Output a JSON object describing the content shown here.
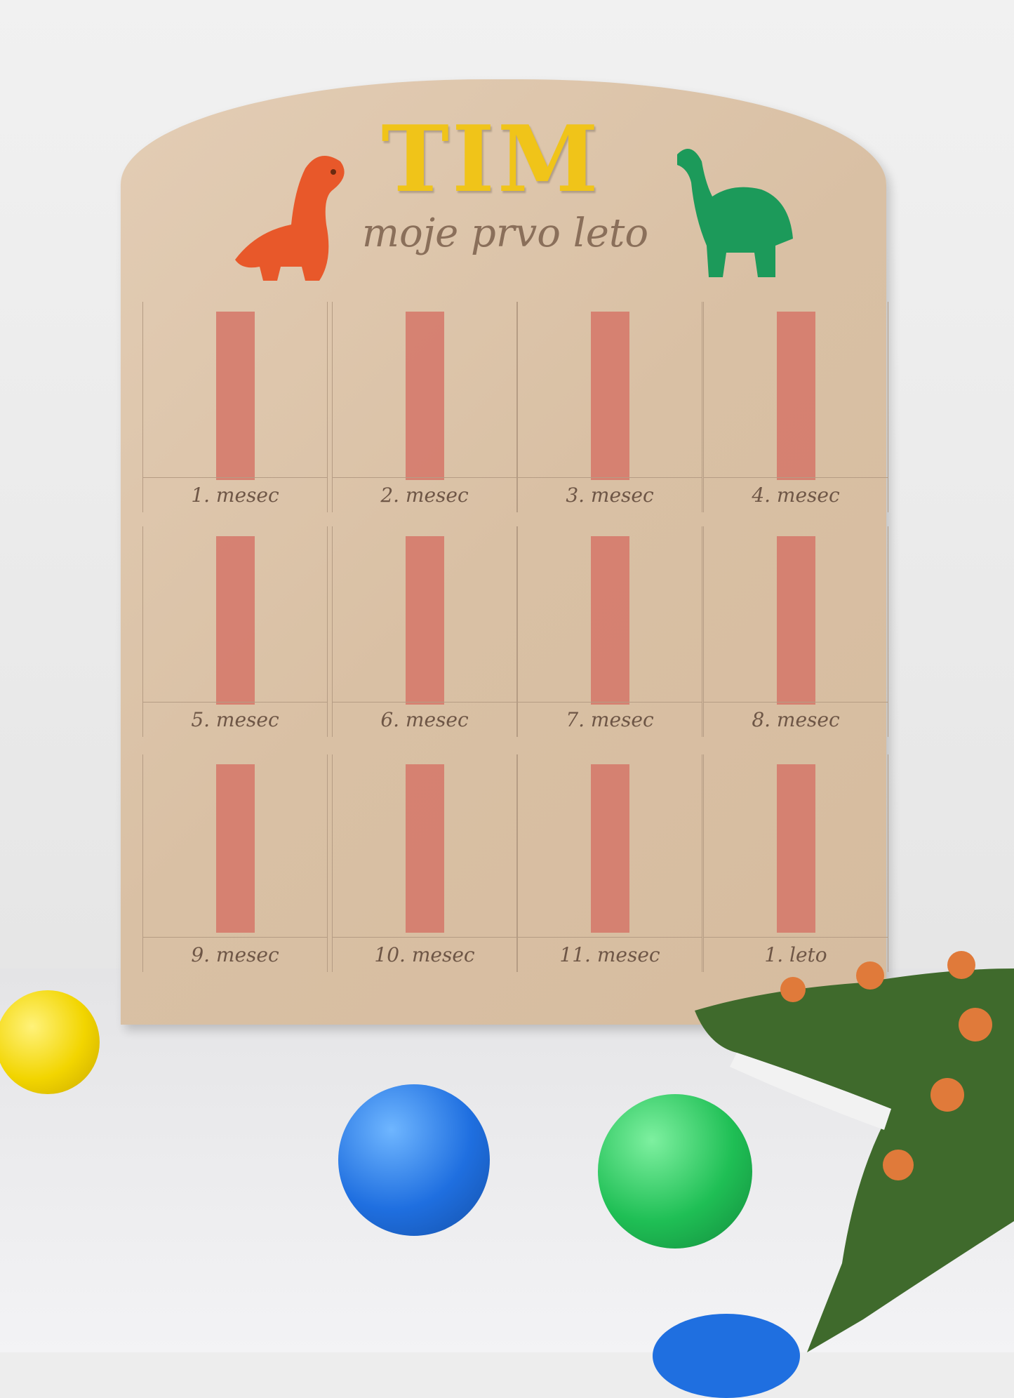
{
  "board": {
    "title": "TIM",
    "subtitle": "moje prvo leto",
    "cells": [
      "1. mesec",
      "2. mesec",
      "3. mesec",
      "4. mesec",
      "5. mesec",
      "6. mesec",
      "7. mesec",
      "8. mesec",
      "9. mesec",
      "10. mesec",
      "11. mesec",
      "1. leto"
    ]
  },
  "colors": {
    "title": "#f0c419",
    "strip": "#d57a6c",
    "dino_left": "#e8582a",
    "dino_right": "#1c9a5a"
  }
}
